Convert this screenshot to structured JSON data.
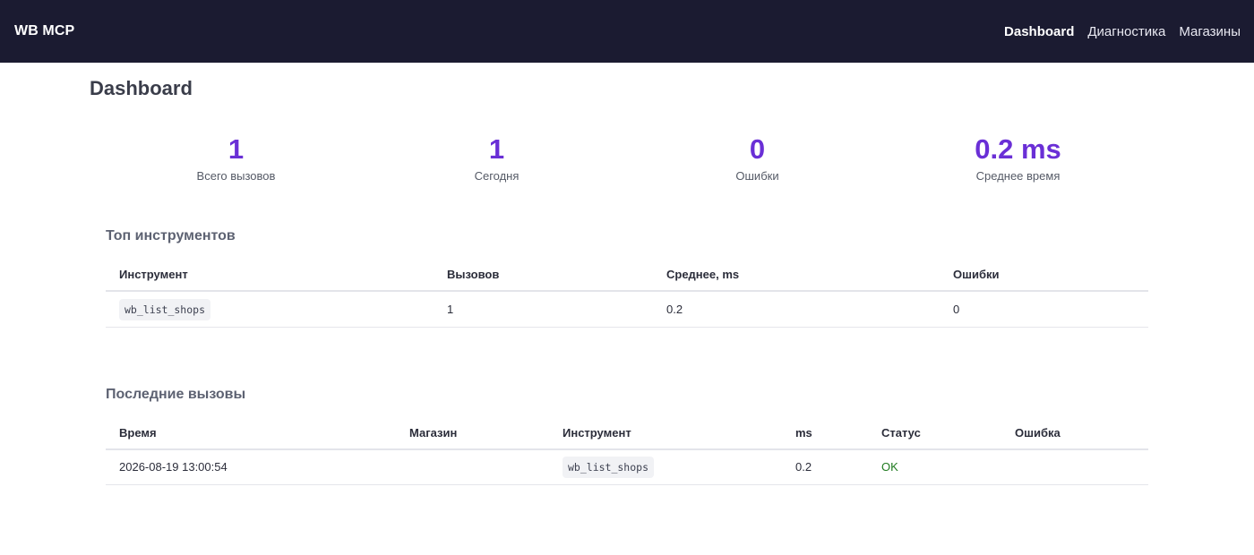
{
  "navbar": {
    "brand": "WB MCP",
    "links": [
      {
        "label": "Dashboard"
      },
      {
        "label": "Диагностика"
      },
      {
        "label": "Магазины"
      }
    ]
  },
  "page": {
    "title": "Dashboard"
  },
  "stats": [
    {
      "value": "1",
      "label": "Всего вызовов"
    },
    {
      "value": "1",
      "label": "Сегодня"
    },
    {
      "value": "0",
      "label": "Ошибки"
    },
    {
      "value": "0.2 ms",
      "label": "Среднее время"
    }
  ],
  "top_tools": {
    "title": "Топ инструментов",
    "headers": [
      "Инструмент",
      "Вызовов",
      "Среднее, ms",
      "Ошибки"
    ],
    "rows": [
      {
        "tool": "wb_list_shops",
        "calls": "1",
        "avg_ms": "0.2",
        "errors": "0"
      }
    ]
  },
  "recent_calls": {
    "title": "Последние вызовы",
    "headers": [
      "Время",
      "Магазин",
      "Инструмент",
      "ms",
      "Статус",
      "Ошибка"
    ],
    "rows": [
      {
        "time": "2026-08-19 13:00:54",
        "shop": "",
        "tool": "wb_list_shops",
        "ms": "0.2",
        "status": "OK",
        "error": ""
      }
    ]
  },
  "colors": {
    "navbar_bg": "#1b1b31",
    "accent": "#6a2fd6",
    "status_ok": "#1f7a1f"
  }
}
